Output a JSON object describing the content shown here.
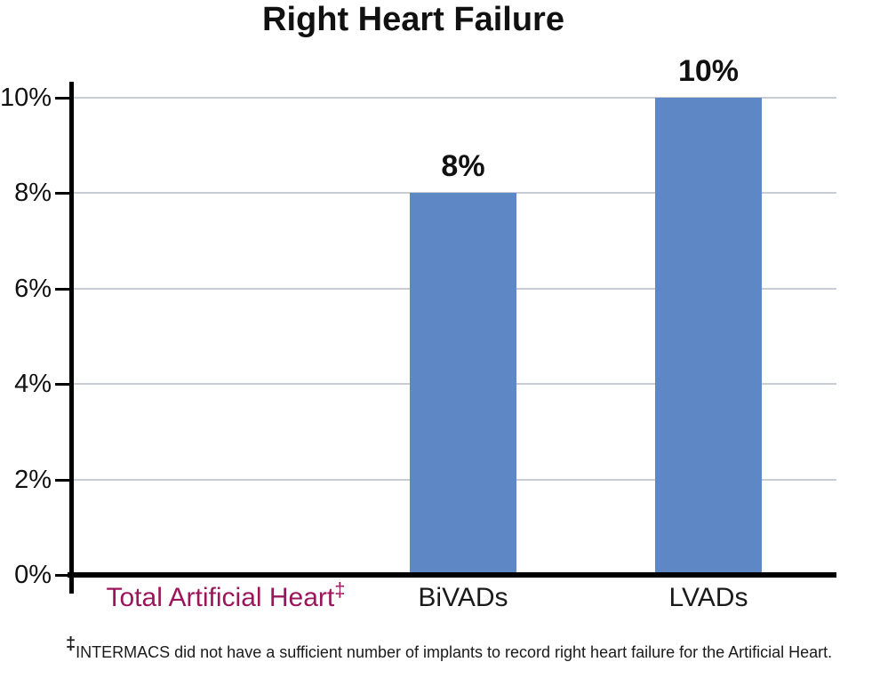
{
  "title": "Right Heart Failure",
  "chart_data": {
    "type": "bar",
    "title": "Right Heart Failure",
    "categories": [
      "Total Artificial Heart‡",
      "BiVADs",
      "LVADs"
    ],
    "values": [
      null,
      8,
      10
    ],
    "value_labels": [
      null,
      "8%",
      "10%"
    ],
    "xlabel": "",
    "ylabel": "",
    "ylim": [
      0,
      10
    ],
    "yticks": [
      0,
      2,
      4,
      6,
      8,
      10
    ],
    "ytick_labels": [
      "0%",
      "2%",
      "4%",
      "6%",
      "8%",
      "10%"
    ],
    "grid": true,
    "legend_position": "none",
    "bar_color": "#5E87C5",
    "category_label_colors": [
      "#9C155B",
      "#1A1A1A",
      "#1A1A1A"
    ]
  },
  "footnote": {
    "dagger": "‡",
    "text": "INTERMACS did not have a sufficient number of implants to record right heart failure for the Artificial Heart."
  },
  "colors": {
    "bar": "#5E87C5",
    "gridline": "#C8CCD3",
    "axis": "#000000",
    "accent_magenta": "#9C155B",
    "text": "#111111",
    "background": "#FFFFFF"
  }
}
